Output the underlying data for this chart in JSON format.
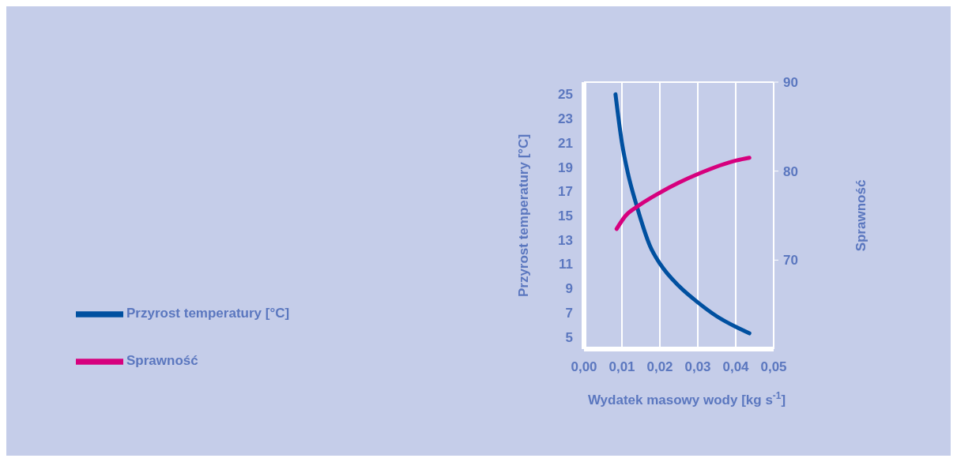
{
  "chart_data": {
    "type": "line",
    "xlabel": "Wydatek masowy wody [kg s$^{-1}$]",
    "ylabel": "Przyrost temperatury [°C]",
    "y2label": "Sprawność",
    "xlim": [
      0,
      0.05
    ],
    "xticks": [
      {
        "value": 0,
        "label": "0,00"
      },
      {
        "value": 0.01,
        "label": "0,01"
      },
      {
        "value": 0.02,
        "label": "0,02"
      },
      {
        "value": 0.03,
        "label": "0,03"
      },
      {
        "value": 0.04,
        "label": "0,04"
      },
      {
        "value": 0.05,
        "label": "0,05"
      }
    ],
    "ylim": [
      4,
      26
    ],
    "yticks": [
      5,
      7,
      9,
      11,
      13,
      15,
      17,
      19,
      21,
      23,
      25
    ],
    "y2lim": [
      60,
      90
    ],
    "y2ticks": [
      70,
      80,
      90
    ],
    "grid": true,
    "legend": "left",
    "marker": "none",
    "line_style": "solid",
    "series": [
      {
        "name": "Przyrost temperatury [°C]",
        "color": "#0050a0",
        "x": [
          0.0083,
          0.01,
          0.0115,
          0.014,
          0.0174,
          0.0201,
          0.025,
          0.0302,
          0.035,
          0.0402,
          0.0436
        ],
        "values": [
          25,
          21,
          18.6,
          15.7,
          12.5,
          11,
          9.2,
          7.8,
          6.7,
          5.8,
          5.3
        ]
      },
      {
        "name": "Sprawność",
        "color": "#d6007e",
        "axis": "y2",
        "x": [
          0.0086,
          0.011,
          0.014,
          0.0201,
          0.025,
          0.0302,
          0.0402,
          0.0436
        ],
        "values": [
          73.5,
          75,
          76,
          77.6,
          78.7,
          79.7,
          81.2,
          81.5
        ]
      }
    ]
  }
}
